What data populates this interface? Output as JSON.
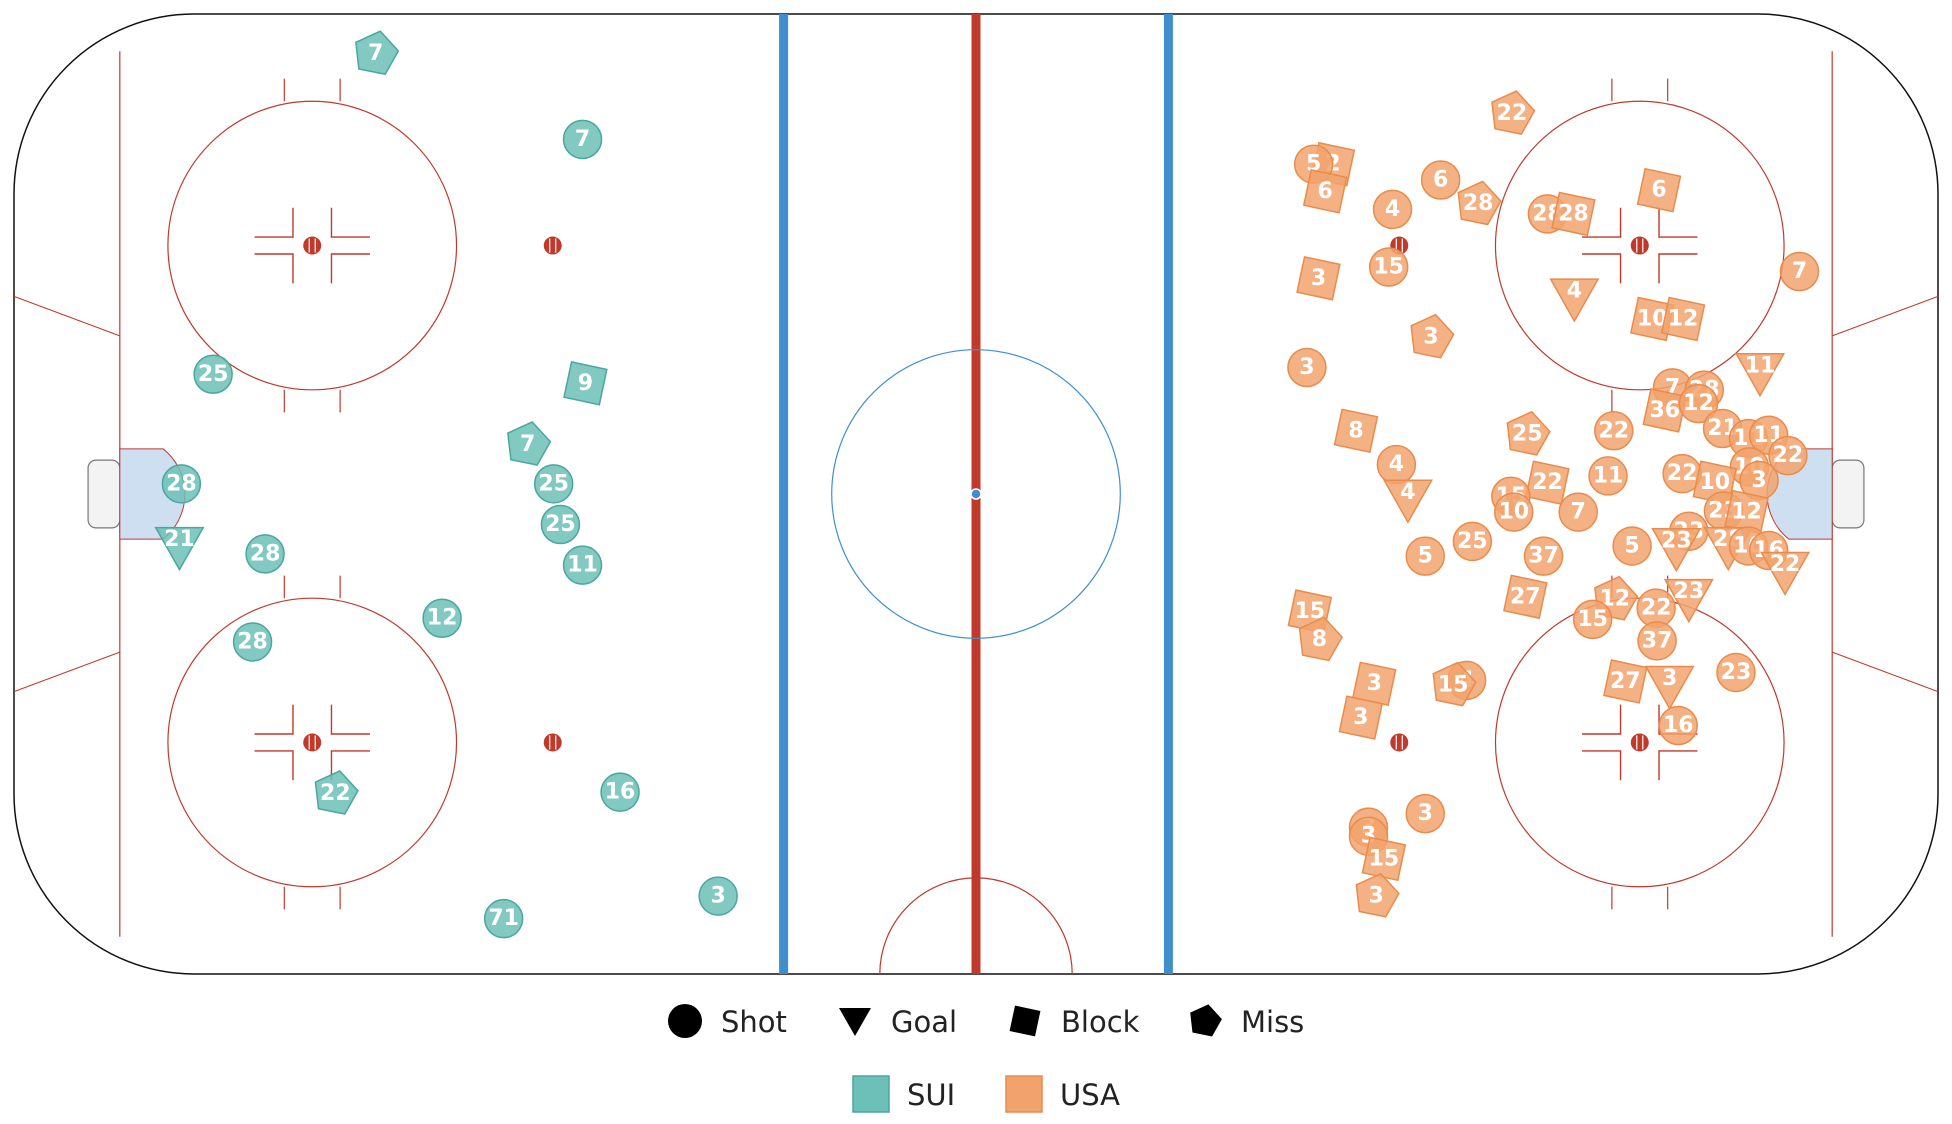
{
  "chart_data": {
    "type": "scatter",
    "xlim": [
      -100,
      100
    ],
    "ylim": [
      -42.5,
      42.5
    ],
    "event_types": [
      {
        "key": "shot",
        "label": "Shot",
        "icon": "circle-icon"
      },
      {
        "key": "goal",
        "label": "Goal",
        "icon": "triangle-down-icon"
      },
      {
        "key": "block",
        "label": "Block",
        "icon": "square-icon"
      },
      {
        "key": "miss",
        "label": "Miss",
        "icon": "pentagon-icon"
      }
    ],
    "teams": [
      {
        "name": "SUI",
        "color": "#6cc0b7",
        "stroke": "#4aa79d"
      },
      {
        "name": "USA",
        "color": "#f2a36d",
        "stroke": "#e88c4d"
      }
    ],
    "series": [
      {
        "name": "SUI",
        "points": [
          {
            "x": -62.4,
            "y": 39.0,
            "num": "7",
            "type": "miss"
          },
          {
            "x": -40.9,
            "y": 31.4,
            "num": "7",
            "type": "shot"
          },
          {
            "x": -79.3,
            "y": 10.6,
            "num": "25",
            "type": "shot"
          },
          {
            "x": -40.6,
            "y": 9.8,
            "num": "9",
            "type": "block"
          },
          {
            "x": -46.6,
            "y": 4.4,
            "num": "7",
            "type": "miss"
          },
          {
            "x": -43.9,
            "y": 0.9,
            "num": "25",
            "type": "shot"
          },
          {
            "x": -82.6,
            "y": 0.9,
            "num": "28",
            "type": "shot"
          },
          {
            "x": -43.2,
            "y": -2.7,
            "num": "25",
            "type": "shot"
          },
          {
            "x": -82.8,
            "y": -4.4,
            "num": "21",
            "type": "goal"
          },
          {
            "x": -73.9,
            "y": -5.3,
            "num": "28",
            "type": "shot"
          },
          {
            "x": -40.9,
            "y": -6.3,
            "num": "11",
            "type": "shot"
          },
          {
            "x": -55.5,
            "y": -11.0,
            "num": "12",
            "type": "shot"
          },
          {
            "x": -75.2,
            "y": -13.1,
            "num": "28",
            "type": "shot"
          },
          {
            "x": -66.6,
            "y": -26.5,
            "num": "22",
            "type": "miss"
          },
          {
            "x": -37.0,
            "y": -26.4,
            "num": "16",
            "type": "shot"
          },
          {
            "x": -49.1,
            "y": -37.6,
            "num": "71",
            "type": "shot"
          },
          {
            "x": -26.8,
            "y": -35.6,
            "num": "3",
            "type": "shot"
          }
        ]
      },
      {
        "name": "USA",
        "points": [
          {
            "x": 55.7,
            "y": 33.7,
            "num": "22",
            "type": "miss"
          },
          {
            "x": 37.1,
            "y": 29.2,
            "num": "2",
            "type": "block"
          },
          {
            "x": 35.1,
            "y": 29.2,
            "num": "5",
            "type": "shot"
          },
          {
            "x": 36.3,
            "y": 26.8,
            "num": "6",
            "type": "block"
          },
          {
            "x": 48.3,
            "y": 27.8,
            "num": "6",
            "type": "shot"
          },
          {
            "x": 43.3,
            "y": 25.2,
            "num": "4",
            "type": "shot"
          },
          {
            "x": 52.2,
            "y": 25.7,
            "num": "28",
            "type": "miss"
          },
          {
            "x": 59.4,
            "y": 24.8,
            "num": "28",
            "type": "shot"
          },
          {
            "x": 62.1,
            "y": 24.8,
            "num": "28",
            "type": "block"
          },
          {
            "x": 71.0,
            "y": 26.9,
            "num": "6",
            "type": "block"
          },
          {
            "x": 42.9,
            "y": 20.1,
            "num": "15",
            "type": "shot"
          },
          {
            "x": 35.6,
            "y": 19.1,
            "num": "3",
            "type": "block"
          },
          {
            "x": 85.6,
            "y": 19.7,
            "num": "7",
            "type": "shot"
          },
          {
            "x": 62.2,
            "y": 17.6,
            "num": "4",
            "type": "goal"
          },
          {
            "x": 70.3,
            "y": 15.5,
            "num": "10",
            "type": "block"
          },
          {
            "x": 73.5,
            "y": 15.5,
            "num": "12",
            "type": "block"
          },
          {
            "x": 47.3,
            "y": 13.9,
            "num": "3",
            "type": "miss"
          },
          {
            "x": 34.4,
            "y": 11.2,
            "num": "3",
            "type": "shot"
          },
          {
            "x": 81.5,
            "y": 11.0,
            "num": "11",
            "type": "goal"
          },
          {
            "x": 72.4,
            "y": 9.4,
            "num": "7",
            "type": "shot"
          },
          {
            "x": 75.7,
            "y": 9.2,
            "num": "28",
            "type": "shot"
          },
          {
            "x": 71.6,
            "y": 7.4,
            "num": "36",
            "type": "block"
          },
          {
            "x": 75.1,
            "y": 8.0,
            "num": "12",
            "type": "shot"
          },
          {
            "x": 39.5,
            "y": 5.6,
            "num": "8",
            "type": "block"
          },
          {
            "x": 57.3,
            "y": 5.3,
            "num": "25",
            "type": "miss"
          },
          {
            "x": 66.3,
            "y": 5.6,
            "num": "22",
            "type": "shot"
          },
          {
            "x": 77.6,
            "y": 5.8,
            "num": "21",
            "type": "shot"
          },
          {
            "x": 80.3,
            "y": 4.9,
            "num": "11",
            "type": "shot"
          },
          {
            "x": 82.4,
            "y": 5.2,
            "num": "11",
            "type": "shot"
          },
          {
            "x": 84.4,
            "y": 3.4,
            "num": "22",
            "type": "shot"
          },
          {
            "x": 43.7,
            "y": 2.6,
            "num": "4",
            "type": "shot"
          },
          {
            "x": 65.7,
            "y": 1.6,
            "num": "11",
            "type": "shot"
          },
          {
            "x": 73.4,
            "y": 1.8,
            "num": "22",
            "type": "shot"
          },
          {
            "x": 80.4,
            "y": 2.4,
            "num": "10",
            "type": "shot"
          },
          {
            "x": 76.8,
            "y": 1.0,
            "num": "10",
            "type": "block"
          },
          {
            "x": 81.4,
            "y": 1.2,
            "num": "3",
            "type": "shot"
          },
          {
            "x": 59.4,
            "y": 1.0,
            "num": "22",
            "type": "block"
          },
          {
            "x": 44.9,
            "y": -0.2,
            "num": "4",
            "type": "goal"
          },
          {
            "x": 55.6,
            "y": -0.2,
            "num": "15",
            "type": "shot"
          },
          {
            "x": 55.9,
            "y": -1.6,
            "num": "10",
            "type": "shot"
          },
          {
            "x": 62.6,
            "y": -1.6,
            "num": "7",
            "type": "shot"
          },
          {
            "x": 77.7,
            "y": -1.5,
            "num": "23",
            "type": "shot"
          },
          {
            "x": 80.1,
            "y": -1.6,
            "num": "12",
            "type": "block"
          },
          {
            "x": 74.1,
            "y": -3.3,
            "num": "23",
            "type": "shot"
          },
          {
            "x": 72.8,
            "y": -4.5,
            "num": "23",
            "type": "goal"
          },
          {
            "x": 78.2,
            "y": -4.4,
            "num": "28",
            "type": "goal"
          },
          {
            "x": 80.3,
            "y": -4.6,
            "num": "10",
            "type": "shot"
          },
          {
            "x": 82.4,
            "y": -5.0,
            "num": "16",
            "type": "shot"
          },
          {
            "x": 84.1,
            "y": -6.6,
            "num": "22",
            "type": "goal"
          },
          {
            "x": 46.7,
            "y": -5.5,
            "num": "5",
            "type": "shot"
          },
          {
            "x": 51.6,
            "y": -4.2,
            "num": "25",
            "type": "shot"
          },
          {
            "x": 59.0,
            "y": -5.5,
            "num": "37",
            "type": "shot"
          },
          {
            "x": 68.2,
            "y": -4.6,
            "num": "5",
            "type": "shot"
          },
          {
            "x": 57.1,
            "y": -9.1,
            "num": "27",
            "type": "block"
          },
          {
            "x": 66.4,
            "y": -9.3,
            "num": "12",
            "type": "miss"
          },
          {
            "x": 70.7,
            "y": -10.1,
            "num": "22",
            "type": "shot"
          },
          {
            "x": 74.1,
            "y": -9.0,
            "num": "23",
            "type": "goal"
          },
          {
            "x": 70.8,
            "y": -13.0,
            "num": "37",
            "type": "shot"
          },
          {
            "x": 64.1,
            "y": -11.1,
            "num": "15",
            "type": "shot"
          },
          {
            "x": 34.7,
            "y": -10.4,
            "num": "15",
            "type": "block"
          },
          {
            "x": 35.7,
            "y": -12.9,
            "num": "8",
            "type": "miss"
          },
          {
            "x": 41.4,
            "y": -16.8,
            "num": "3",
            "type": "block"
          },
          {
            "x": 40.0,
            "y": -19.8,
            "num": "3",
            "type": "block"
          },
          {
            "x": 51.0,
            "y": -16.5,
            "num": "4",
            "type": "shot"
          },
          {
            "x": 49.6,
            "y": -16.9,
            "num": "15",
            "type": "miss"
          },
          {
            "x": 67.5,
            "y": -16.6,
            "num": "27",
            "type": "block"
          },
          {
            "x": 72.1,
            "y": -16.7,
            "num": "3",
            "type": "goal"
          },
          {
            "x": 79.0,
            "y": -15.8,
            "num": "23",
            "type": "shot"
          },
          {
            "x": 73.0,
            "y": -20.5,
            "num": "16",
            "type": "shot"
          },
          {
            "x": 40.8,
            "y": -29.5,
            "num": "3",
            "type": "shot"
          },
          {
            "x": 40.8,
            "y": -30.3,
            "num": "3",
            "type": "shot"
          },
          {
            "x": 46.7,
            "y": -28.3,
            "num": "3",
            "type": "shot"
          },
          {
            "x": 42.4,
            "y": -32.3,
            "num": "15",
            "type": "block"
          },
          {
            "x": 41.6,
            "y": -35.6,
            "num": "3",
            "type": "miss"
          }
        ]
      }
    ]
  }
}
